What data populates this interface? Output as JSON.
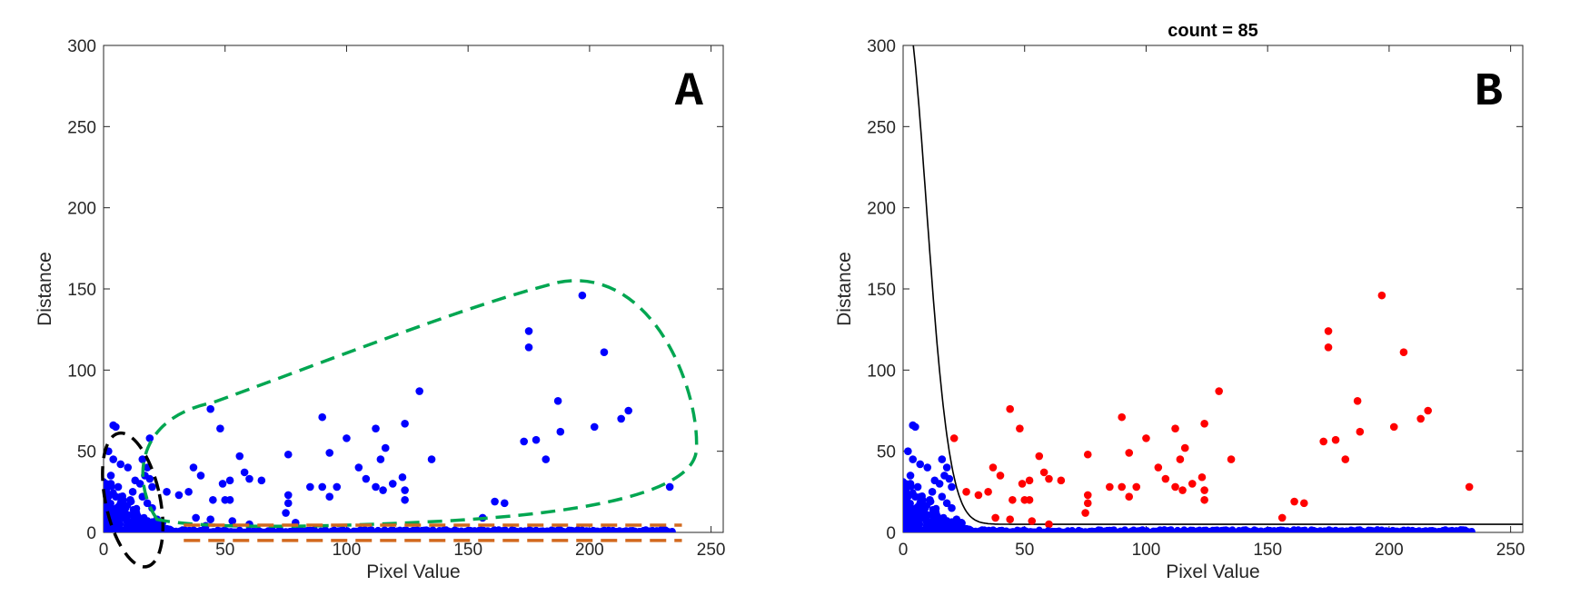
{
  "colors": {
    "blue": "#0000ff",
    "red": "#ff0000",
    "green_dash": "#00a651",
    "orange_dash": "#d2691e",
    "black": "#000000"
  },
  "chart_data": [
    {
      "type": "scatter",
      "panel_letter": "A",
      "title": "",
      "xlabel": "Pixel Value",
      "ylabel": "Distance",
      "xlim": [
        0,
        255
      ],
      "ylim": [
        0,
        300
      ],
      "xticks": [
        0,
        50,
        100,
        150,
        200,
        250
      ],
      "yticks": [
        0,
        50,
        100,
        150,
        200,
        250,
        300
      ],
      "grid": false,
      "annotations": [
        "black dashed ellipse around low pixel values",
        "green dashed outline around scattered outliers",
        "orange dashed band along the baseline"
      ],
      "series": [
        {
          "color": "blue",
          "points": [
            [
              197,
              146
            ],
            [
              175,
              124
            ],
            [
              175,
              114
            ],
            [
              206,
              111
            ],
            [
              130,
              87
            ],
            [
              187,
              81
            ],
            [
              44,
              76
            ],
            [
              216,
              75
            ],
            [
              90,
              71
            ],
            [
              213,
              70
            ],
            [
              124,
              67
            ],
            [
              48,
              64
            ],
            [
              112,
              64
            ],
            [
              202,
              65
            ],
            [
              188,
              62
            ],
            [
              100,
              58
            ],
            [
              178,
              57
            ],
            [
              173,
              56
            ],
            [
              19,
              58
            ],
            [
              93,
              49
            ],
            [
              116,
              52
            ],
            [
              76,
              48
            ],
            [
              56,
              47
            ],
            [
              114,
              45
            ],
            [
              135,
              45
            ],
            [
              182,
              45
            ],
            [
              105,
              40
            ],
            [
              123,
              34
            ],
            [
              108,
              33
            ],
            [
              65,
              32
            ],
            [
              37,
              40
            ],
            [
              40,
              35
            ],
            [
              58,
              37
            ],
            [
              60,
              33
            ],
            [
              49,
              30
            ],
            [
              52,
              32
            ],
            [
              112,
              28
            ],
            [
              119,
              30
            ],
            [
              85,
              28
            ],
            [
              96,
              28
            ],
            [
              90,
              28
            ],
            [
              76,
              23
            ],
            [
              124,
              26
            ],
            [
              115,
              26
            ],
            [
              93,
              22
            ],
            [
              35,
              25
            ],
            [
              31,
              23
            ],
            [
              26,
              25
            ],
            [
              45,
              20
            ],
            [
              50,
              20
            ],
            [
              52,
              20
            ],
            [
              76,
              18
            ],
            [
              124,
              20
            ],
            [
              161,
              19
            ],
            [
              165,
              18
            ],
            [
              233,
              28
            ],
            [
              156,
              9
            ],
            [
              38,
              9
            ],
            [
              44,
              8
            ],
            [
              53,
              7
            ],
            [
              75,
              12
            ],
            [
              60,
              5
            ],
            [
              42,
              4
            ],
            [
              79,
              6
            ],
            [
              4,
              66
            ],
            [
              5,
              65
            ],
            [
              2,
              50
            ],
            [
              4,
              45
            ],
            [
              7,
              42
            ],
            [
              10,
              40
            ],
            [
              3,
              35
            ],
            [
              13,
              32
            ],
            [
              6,
              28
            ],
            [
              12,
              25
            ],
            [
              16,
              22
            ],
            [
              8,
              20
            ],
            [
              18,
              18
            ],
            [
              20,
              15
            ],
            [
              2,
              12
            ],
            [
              14,
              10
            ],
            [
              22,
              8
            ],
            [
              24,
              6
            ],
            [
              9,
              15
            ],
            [
              11,
              20
            ],
            [
              15,
              30
            ],
            [
              17,
              35
            ],
            [
              18,
              40
            ],
            [
              1,
              25
            ],
            [
              3,
              30
            ],
            [
              5,
              22
            ],
            [
              7,
              18
            ],
            [
              20,
              28
            ],
            [
              19,
              33
            ],
            [
              16,
              45
            ]
          ],
          "baseline_from": 0,
          "baseline_to": 234,
          "baseline_y_max": 4
        }
      ]
    },
    {
      "type": "scatter",
      "panel_letter": "B",
      "title": "count = 85",
      "xlabel": "Pixel Value",
      "ylabel": "Distance",
      "xlim": [
        0,
        255
      ],
      "ylim": [
        0,
        300
      ],
      "xticks": [
        0,
        50,
        100,
        150,
        200,
        250
      ],
      "yticks": [
        0,
        50,
        100,
        150,
        200,
        250,
        300
      ],
      "grid": false,
      "threshold_curve": "black curve decaying from 300 at x≈2 to about 5 for x > 35",
      "series": [
        {
          "color": "red",
          "points": [
            [
              197,
              146
            ],
            [
              175,
              124
            ],
            [
              175,
              114
            ],
            [
              206,
              111
            ],
            [
              130,
              87
            ],
            [
              187,
              81
            ],
            [
              44,
              76
            ],
            [
              216,
              75
            ],
            [
              90,
              71
            ],
            [
              213,
              70
            ],
            [
              124,
              67
            ],
            [
              48,
              64
            ],
            [
              112,
              64
            ],
            [
              202,
              65
            ],
            [
              188,
              62
            ],
            [
              100,
              58
            ],
            [
              178,
              57
            ],
            [
              173,
              56
            ],
            [
              21,
              58
            ],
            [
              93,
              49
            ],
            [
              116,
              52
            ],
            [
              76,
              48
            ],
            [
              56,
              47
            ],
            [
              114,
              45
            ],
            [
              135,
              45
            ],
            [
              182,
              45
            ],
            [
              105,
              40
            ],
            [
              123,
              34
            ],
            [
              108,
              33
            ],
            [
              65,
              32
            ],
            [
              37,
              40
            ],
            [
              40,
              35
            ],
            [
              58,
              37
            ],
            [
              60,
              33
            ],
            [
              49,
              30
            ],
            [
              52,
              32
            ],
            [
              112,
              28
            ],
            [
              119,
              30
            ],
            [
              85,
              28
            ],
            [
              96,
              28
            ],
            [
              90,
              28
            ],
            [
              76,
              23
            ],
            [
              124,
              26
            ],
            [
              115,
              26
            ],
            [
              93,
              22
            ],
            [
              35,
              25
            ],
            [
              31,
              23
            ],
            [
              26,
              25
            ],
            [
              45,
              20
            ],
            [
              50,
              20
            ],
            [
              52,
              20
            ],
            [
              76,
              18
            ],
            [
              124,
              20
            ],
            [
              161,
              19
            ],
            [
              165,
              18
            ],
            [
              233,
              28
            ],
            [
              156,
              9
            ],
            [
              38,
              9
            ],
            [
              44,
              8
            ],
            [
              53,
              7
            ],
            [
              75,
              12
            ],
            [
              60,
              5
            ]
          ]
        },
        {
          "color": "blue",
          "points": [
            [
              4,
              66
            ],
            [
              5,
              65
            ],
            [
              2,
              50
            ],
            [
              4,
              45
            ],
            [
              7,
              42
            ],
            [
              10,
              40
            ],
            [
              3,
              35
            ],
            [
              13,
              32
            ],
            [
              6,
              28
            ],
            [
              12,
              25
            ],
            [
              16,
              22
            ],
            [
              8,
              20
            ],
            [
              18,
              18
            ],
            [
              20,
              15
            ],
            [
              2,
              12
            ],
            [
              14,
              10
            ],
            [
              22,
              8
            ],
            [
              24,
              6
            ],
            [
              9,
              15
            ],
            [
              11,
              20
            ],
            [
              15,
              30
            ],
            [
              17,
              35
            ],
            [
              18,
              40
            ],
            [
              1,
              25
            ],
            [
              3,
              30
            ],
            [
              5,
              22
            ],
            [
              7,
              18
            ],
            [
              20,
              28
            ],
            [
              19,
              33
            ],
            [
              16,
              45
            ]
          ],
          "baseline_from": 0,
          "baseline_to": 234,
          "baseline_y_max": 4
        }
      ]
    }
  ]
}
